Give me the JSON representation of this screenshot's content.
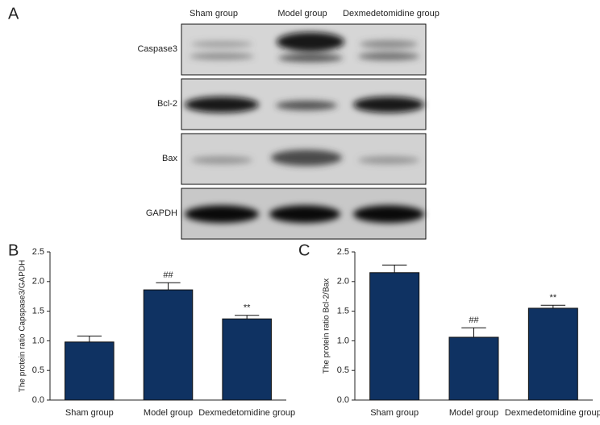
{
  "panel_labels": [
    "A",
    "B",
    "C"
  ],
  "blot": {
    "columns": [
      "Sham group",
      "Model group",
      "Dexmedetomidine group"
    ],
    "rows": [
      "Caspase3",
      "Bcl-2",
      "Bax",
      "GAPDH"
    ]
  },
  "chart_data": [
    {
      "type": "bar",
      "y_label": "The protein ratio Capspase3/GAPDH",
      "categories": [
        "Sham group",
        "Model group",
        "Dexmedetomidine group"
      ],
      "values": [
        0.98,
        1.86,
        1.37
      ],
      "errors": [
        0.1,
        0.12,
        0.06
      ],
      "markers": [
        null,
        "##",
        "**"
      ],
      "color": "#0f3262",
      "ylim": [
        0,
        2.5
      ],
      "yticks": [
        {
          "value": 0,
          "label": "0.0"
        },
        0.5,
        {
          "value": 1,
          "label": "1.0"
        },
        1.5,
        {
          "value": 2,
          "label": "2.0"
        },
        2.5
      ]
    },
    {
      "type": "bar",
      "y_label": "The protein ratio Bcl-2/Bax",
      "categories": [
        "Sham group",
        "Model group",
        "Dexmedetomidine group"
      ],
      "values": [
        2.15,
        1.06,
        1.55
      ],
      "errors": [
        0.13,
        0.16,
        0.05
      ],
      "markers": [
        null,
        "##",
        "**"
      ],
      "color": "#0f3262",
      "ylim": [
        0,
        2.5
      ],
      "yticks": [
        {
          "value": 0,
          "label": "0.0"
        },
        0.5,
        {
          "value": 1,
          "label": "1.0"
        },
        1.5,
        {
          "value": 2,
          "label": "2.0"
        },
        2.5
      ]
    }
  ]
}
